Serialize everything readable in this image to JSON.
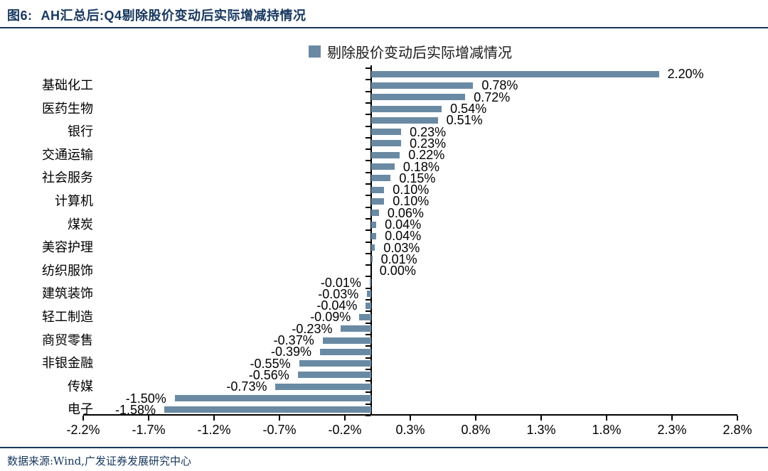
{
  "header": {
    "figure_label": "图6:",
    "title": "AH汇总后:Q4剔除股价变动后实际增减持情况"
  },
  "chart_data": {
    "type": "bar",
    "orientation": "horizontal",
    "legend": "剔除股价变动后实际增减情况",
    "legend_position": "top-center",
    "grid": false,
    "xlim": [
      -2.2,
      2.8
    ],
    "x_ticks": [
      "-2.2%",
      "-1.7%",
      "-1.2%",
      "-0.7%",
      "-0.2%",
      "0.3%",
      "0.8%",
      "1.3%",
      "1.8%",
      "2.3%",
      "2.8%"
    ],
    "values": [
      2.2,
      0.78,
      0.72,
      0.54,
      0.51,
      0.23,
      0.23,
      0.22,
      0.18,
      0.15,
      0.1,
      0.1,
      0.06,
      0.04,
      0.04,
      0.03,
      0.01,
      0.0,
      -0.01,
      -0.03,
      -0.04,
      -0.09,
      -0.23,
      -0.37,
      -0.39,
      -0.55,
      -0.56,
      -0.73,
      -1.5,
      -1.58
    ],
    "value_labels": [
      "2.20%",
      "0.78%",
      "0.72%",
      "0.54%",
      "0.51%",
      "0.23%",
      "0.23%",
      "0.22%",
      "0.18%",
      "0.15%",
      "0.10%",
      "0.10%",
      "0.06%",
      "0.04%",
      "0.04%",
      "0.03%",
      "0.01%",
      "0.00%",
      "-0.01%",
      "-0.03%",
      "-0.04%",
      "-0.09%",
      "-0.23%",
      "-0.37%",
      "-0.39%",
      "-0.55%",
      "-0.56%",
      "-0.73%",
      "-1.50%",
      "-1.58%"
    ],
    "category_labels": [
      "基础化工",
      "医药生物",
      "银行",
      "交通运输",
      "社会服务",
      "计算机",
      "煤炭",
      "美容护理",
      "纺织服饰",
      "建筑装饰",
      "轻工制造",
      "商贸零售",
      "非银金融",
      "传媒",
      "电子"
    ],
    "category_label_rows": [
      1,
      3,
      5,
      7,
      9,
      11,
      13,
      15,
      17,
      19,
      21,
      23,
      25,
      27,
      29
    ],
    "bar_color": "#6a8aa4"
  },
  "footer": {
    "source": "数据来源:Wind,广发证券发展研究中心"
  },
  "colors": {
    "bar": "#6a8aa4",
    "accent_text": "#17375e",
    "axis": "#000000"
  }
}
